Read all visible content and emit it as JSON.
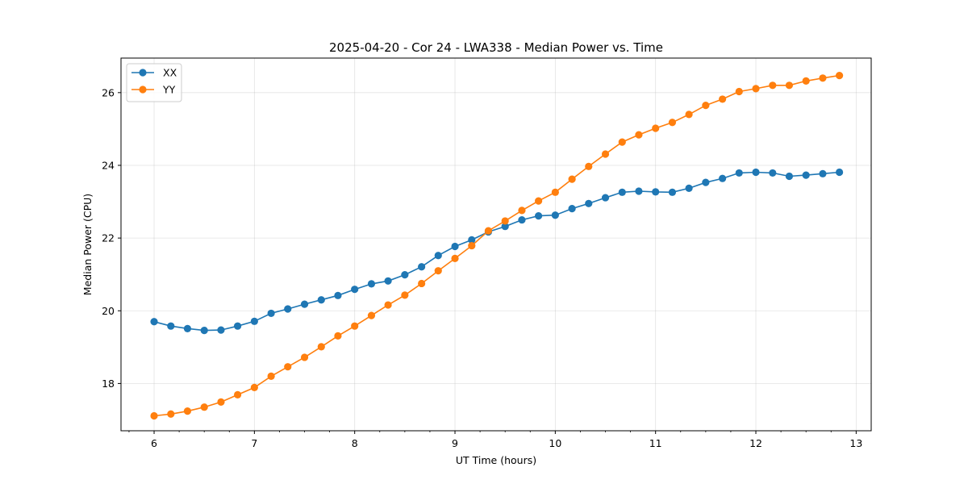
{
  "chart_data": {
    "type": "line",
    "title": "2025-04-20 - Cor 24 - LWA338 - Median Power vs. Time",
    "xlabel": "UT Time (hours)",
    "ylabel": "Median Power (CPU)",
    "xlim": [
      5.67,
      13.15
    ],
    "ylim": [
      16.7,
      26.95
    ],
    "xticks": [
      6,
      7,
      8,
      9,
      10,
      11,
      12,
      13
    ],
    "yticks": [
      18,
      20,
      22,
      24,
      26
    ],
    "grid": true,
    "legend": "top-left",
    "x": [
      6.0,
      6.167,
      6.333,
      6.5,
      6.667,
      6.833,
      7.0,
      7.167,
      7.333,
      7.5,
      7.667,
      7.833,
      8.0,
      8.167,
      8.333,
      8.5,
      8.667,
      8.833,
      9.0,
      9.167,
      9.333,
      9.5,
      9.667,
      9.833,
      10.0,
      10.167,
      10.333,
      10.5,
      10.667,
      10.833,
      11.0,
      11.167,
      11.333,
      11.5,
      11.667,
      11.833,
      12.0,
      12.167,
      12.333,
      12.5,
      12.667,
      12.833
    ],
    "series": [
      {
        "name": "XX",
        "color": "#1f77b4",
        "values": [
          19.7,
          19.58,
          19.51,
          19.46,
          19.47,
          19.58,
          19.71,
          19.93,
          20.05,
          20.18,
          20.3,
          20.42,
          20.59,
          20.74,
          20.82,
          20.99,
          21.21,
          21.52,
          21.77,
          21.95,
          22.17,
          22.32,
          22.5,
          22.61,
          22.63,
          22.81,
          22.95,
          23.11,
          23.26,
          23.29,
          23.27,
          23.26,
          23.37,
          23.53,
          23.64,
          23.79,
          23.81,
          23.79,
          23.7,
          23.73,
          23.77,
          23.81
        ]
      },
      {
        "name": "YY",
        "color": "#ff7f0e",
        "values": [
          17.11,
          17.16,
          17.24,
          17.35,
          17.49,
          17.69,
          17.89,
          18.2,
          18.46,
          18.72,
          19.01,
          19.31,
          19.58,
          19.87,
          20.16,
          20.43,
          20.75,
          21.1,
          21.44,
          21.79,
          22.2,
          22.47,
          22.76,
          23.02,
          23.26,
          23.62,
          23.97,
          24.31,
          24.64,
          24.84,
          25.02,
          25.18,
          25.4,
          25.65,
          25.82,
          26.03,
          26.11,
          26.2,
          26.2,
          26.32,
          26.4,
          26.47
        ]
      }
    ]
  }
}
